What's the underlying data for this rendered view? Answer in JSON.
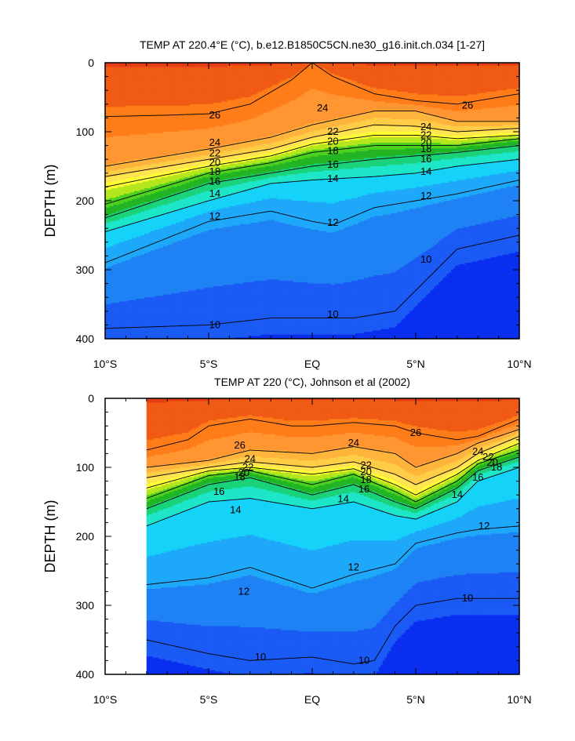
{
  "chart_data": [
    {
      "type": "heatmap",
      "subtype": "filled-contour",
      "title": "TEMP AT 220.4°E (°C), b.e12.B1850C5CN.ne30_g16.init.ch.034 [1-27]",
      "ylabel": "DEPTH (m)",
      "xlabel": "",
      "x_range": [
        -10,
        10
      ],
      "x_ticks": [
        -10,
        -5,
        0,
        5,
        10
      ],
      "x_tick_labels": [
        "10°S",
        "5°S",
        "EQ",
        "5°N",
        "10°N"
      ],
      "y_range": [
        0,
        400
      ],
      "y_ticks": [
        0,
        100,
        200,
        300,
        400
      ],
      "y_tick_labels": [
        "0",
        "100",
        "200",
        "300",
        "400"
      ],
      "y_inverted": true,
      "data_x_extent": [
        -10,
        10
      ],
      "thermocline_depth": {
        "x": [
          -10,
          -5,
          -2,
          0,
          2,
          5,
          10
        ],
        "depth": [
          180,
          160,
          140,
          130,
          135,
          125,
          100
        ]
      },
      "isotherms": [
        {
          "value": 26,
          "x": [
            -10,
            -7,
            -5,
            -3,
            -1,
            0,
            1,
            3,
            5,
            7,
            10
          ],
          "depth": [
            78,
            76,
            74,
            60,
            25,
            0,
            20,
            45,
            55,
            60,
            45
          ]
        },
        {
          "value": 24,
          "x": [
            -10,
            -5,
            -2,
            0,
            3,
            5,
            7,
            10
          ],
          "depth": [
            150,
            125,
            108,
            90,
            70,
            70,
            85,
            85
          ]
        },
        {
          "value": 22,
          "x": [
            -10,
            -5,
            -2,
            0,
            3,
            5,
            7,
            10
          ],
          "depth": [
            165,
            140,
            125,
            108,
            90,
            92,
            100,
            95
          ]
        },
        {
          "value": 20,
          "x": [
            -10,
            -5,
            -2,
            0,
            3,
            5,
            7,
            10
          ],
          "depth": [
            180,
            150,
            135,
            118,
            105,
            105,
            110,
            105
          ]
        },
        {
          "value": 18,
          "x": [
            -10,
            -5,
            -2,
            0,
            3,
            5,
            7,
            10
          ],
          "depth": [
            205,
            160,
            145,
            130,
            120,
            120,
            120,
            110
          ]
        },
        {
          "value": 16,
          "x": [
            -10,
            -5,
            -2,
            0,
            3,
            5,
            7,
            10
          ],
          "depth": [
            225,
            175,
            160,
            150,
            140,
            135,
            130,
            120
          ]
        },
        {
          "value": 14,
          "x": [
            -10,
            -5,
            -2,
            0,
            3,
            5,
            7,
            10
          ],
          "depth": [
            245,
            200,
            175,
            170,
            165,
            160,
            150,
            140
          ]
        },
        {
          "value": 12,
          "x": [
            -10,
            -5,
            -2,
            0,
            1,
            3,
            5,
            7,
            10
          ],
          "depth": [
            290,
            230,
            215,
            230,
            235,
            210,
            200,
            190,
            170
          ]
        },
        {
          "value": 10,
          "x": [
            -10,
            -5,
            -2,
            0,
            2,
            4,
            5,
            7,
            10
          ],
          "depth": [
            385,
            380,
            370,
            370,
            370,
            360,
            330,
            270,
            250
          ]
        }
      ],
      "contour_labels": [
        {
          "value": 26,
          "x": -4.7,
          "depth": 76
        },
        {
          "value": 24,
          "x": 0.5,
          "depth": 66
        },
        {
          "value": 26,
          "x": 7.5,
          "depth": 62
        },
        {
          "value": 24,
          "x": -4.7,
          "depth": 116
        },
        {
          "value": 22,
          "x": 1.0,
          "depth": 100
        },
        {
          "value": 24,
          "x": 5.5,
          "depth": 93
        },
        {
          "value": 22,
          "x": -4.7,
          "depth": 131
        },
        {
          "value": 20,
          "x": 1.0,
          "depth": 114
        },
        {
          "value": 22,
          "x": 5.5,
          "depth": 105
        },
        {
          "value": 20,
          "x": -4.7,
          "depth": 145
        },
        {
          "value": 18,
          "x": 1.0,
          "depth": 128
        },
        {
          "value": 20,
          "x": 5.5,
          "depth": 116
        },
        {
          "value": 18,
          "x": -4.7,
          "depth": 158
        },
        {
          "value": 16,
          "x": 1.0,
          "depth": 148
        },
        {
          "value": 18,
          "x": 5.5,
          "depth": 125
        },
        {
          "value": 16,
          "x": -4.7,
          "depth": 172
        },
        {
          "value": 14,
          "x": 1.0,
          "depth": 168
        },
        {
          "value": 16,
          "x": 5.5,
          "depth": 140
        },
        {
          "value": 14,
          "x": -4.7,
          "depth": 190
        },
        {
          "value": 12,
          "x": 1.0,
          "depth": 232
        },
        {
          "value": 14,
          "x": 5.5,
          "depth": 158
        },
        {
          "value": 12,
          "x": -4.7,
          "depth": 223
        },
        {
          "value": 12,
          "x": 5.5,
          "depth": 193
        },
        {
          "value": 10,
          "x": 5.5,
          "depth": 285
        },
        {
          "value": 10,
          "x": -4.7,
          "depth": 380
        },
        {
          "value": 10,
          "x": 1.0,
          "depth": 365
        }
      ]
    },
    {
      "type": "heatmap",
      "subtype": "filled-contour",
      "title": "TEMP AT 220 (°C), Johnson et al (2002)",
      "ylabel": "DEPTH (m)",
      "xlabel": "",
      "x_range": [
        -10,
        10
      ],
      "x_ticks": [
        -10,
        -5,
        0,
        5,
        10
      ],
      "x_tick_labels": [
        "10°S",
        "5°S",
        "EQ",
        "5°N",
        "10°N"
      ],
      "y_range": [
        0,
        400
      ],
      "y_ticks": [
        0,
        100,
        200,
        300,
        400
      ],
      "y_tick_labels": [
        "0",
        "100",
        "200",
        "300",
        "400"
      ],
      "y_inverted": true,
      "data_x_extent": [
        -8,
        10
      ],
      "thermocline_depth": {
        "x": [
          -8,
          -5,
          -2,
          0,
          2,
          5,
          8,
          10
        ],
        "depth": [
          160,
          120,
          110,
          120,
          115,
          150,
          110,
          90
        ]
      },
      "isotherms": [
        {
          "value": 26,
          "x": [
            -8,
            -6,
            -5,
            -3,
            -1,
            0,
            2,
            4,
            5,
            7,
            8,
            10
          ],
          "depth": [
            75,
            60,
            40,
            30,
            40,
            40,
            35,
            40,
            50,
            60,
            55,
            30
          ]
        },
        {
          "value": 24,
          "x": [
            -8,
            -5,
            -3,
            0,
            2,
            4,
            5,
            7,
            8,
            10
          ],
          "depth": [
            100,
            90,
            75,
            80,
            70,
            80,
            100,
            80,
            65,
            45
          ]
        },
        {
          "value": 22,
          "x": [
            -8,
            -5,
            -3,
            0,
            2,
            4,
            5,
            7,
            8,
            10
          ],
          "depth": [
            115,
            100,
            92,
            100,
            92,
            110,
            125,
            100,
            80,
            55
          ]
        },
        {
          "value": 20,
          "x": [
            -8,
            -5,
            -3,
            0,
            2,
            4,
            5,
            7,
            8,
            10
          ],
          "depth": [
            130,
            105,
            100,
            110,
            102,
            125,
            140,
            110,
            90,
            65
          ]
        },
        {
          "value": 18,
          "x": [
            -8,
            -5,
            -3,
            0,
            2,
            4,
            5,
            7,
            8,
            10
          ],
          "depth": [
            145,
            112,
            105,
            125,
            110,
            135,
            150,
            120,
            95,
            75
          ]
        },
        {
          "value": 16,
          "x": [
            -8,
            -5,
            -3,
            0,
            2,
            4,
            5,
            7,
            8,
            10
          ],
          "depth": [
            160,
            125,
            115,
            140,
            125,
            150,
            160,
            130,
            105,
            85
          ]
        },
        {
          "value": 14,
          "x": [
            -8,
            -5,
            -3,
            0,
            2,
            4,
            5,
            7,
            8,
            10
          ],
          "depth": [
            185,
            150,
            145,
            160,
            150,
            170,
            175,
            150,
            120,
            100
          ]
        },
        {
          "value": 12,
          "x": [
            -8,
            -5,
            -3,
            0,
            2,
            4,
            5,
            7,
            8,
            10
          ],
          "depth": [
            270,
            260,
            245,
            275,
            255,
            240,
            210,
            195,
            190,
            185
          ]
        },
        {
          "value": 10,
          "x": [
            -8,
            -5,
            -3,
            0,
            2,
            3,
            4,
            5,
            7,
            10
          ],
          "depth": [
            350,
            370,
            380,
            375,
            385,
            380,
            330,
            300,
            290,
            290
          ]
        }
      ],
      "contour_labels": [
        {
          "value": 26,
          "x": -3.5,
          "depth": 68
        },
        {
          "value": 24,
          "x": 2.0,
          "depth": 65
        },
        {
          "value": 26,
          "x": 5.0,
          "depth": 50
        },
        {
          "value": 24,
          "x": -3.0,
          "depth": 88
        },
        {
          "value": 22,
          "x": 2.6,
          "depth": 97
        },
        {
          "value": 24,
          "x": 8.0,
          "depth": 77
        },
        {
          "value": 22,
          "x": -3.1,
          "depth": 100
        },
        {
          "value": 20,
          "x": 2.6,
          "depth": 107
        },
        {
          "value": 22,
          "x": 8.5,
          "depth": 85
        },
        {
          "value": 20,
          "x": -3.3,
          "depth": 108
        },
        {
          "value": 18,
          "x": 2.6,
          "depth": 118
        },
        {
          "value": 20,
          "x": 8.7,
          "depth": 93
        },
        {
          "value": 18,
          "x": -3.5,
          "depth": 114
        },
        {
          "value": 16,
          "x": -4.5,
          "depth": 135
        },
        {
          "value": 16,
          "x": 2.5,
          "depth": 132
        },
        {
          "value": 18,
          "x": 8.9,
          "depth": 100
        },
        {
          "value": 16,
          "x": 8.0,
          "depth": 115
        },
        {
          "value": 14,
          "x": -3.7,
          "depth": 162
        },
        {
          "value": 14,
          "x": 1.5,
          "depth": 146
        },
        {
          "value": 14,
          "x": 7.0,
          "depth": 140
        },
        {
          "value": 12,
          "x": 8.3,
          "depth": 185
        },
        {
          "value": 12,
          "x": 2.0,
          "depth": 245
        },
        {
          "value": 12,
          "x": -3.3,
          "depth": 280
        },
        {
          "value": 10,
          "x": 7.5,
          "depth": 290
        },
        {
          "value": 10,
          "x": -2.5,
          "depth": 375
        },
        {
          "value": 10,
          "x": 2.5,
          "depth": 380
        }
      ]
    }
  ],
  "colors": {
    "temperature_palette": [
      "#0a2ff0",
      "#1b5af5",
      "#1e82f5",
      "#1ea8fa",
      "#15d2f8",
      "#1ee6c8",
      "#1ad27a",
      "#23b423",
      "#4cd21e",
      "#b4e61e",
      "#ffff32",
      "#ffe650",
      "#ffcd46",
      "#ffb43c",
      "#ff9632",
      "#ff7d19",
      "#f05a14",
      "#e63c14"
    ],
    "palette_min": 8.5,
    "palette_max": 28.5,
    "background": "#ffffff",
    "contour_line": "#000000"
  }
}
